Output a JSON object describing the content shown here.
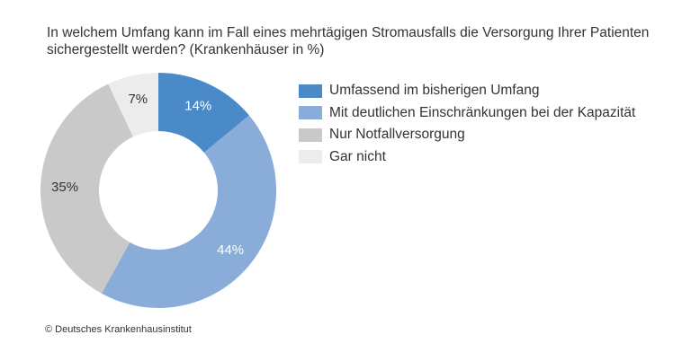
{
  "title": "In welchem Umfang kann im Fall eines mehrtägigen Stromausfalls die Versorgung Ihrer Patienten sichergestellt werden? (Krankenhäuser in %)",
  "source": "© Deutsches Krankenhausinstitut",
  "chart_data": {
    "type": "pie",
    "title": "In welchem Umfang kann im Fall eines mehrtägigen Stromausfalls die Versorgung Ihrer Patienten sichergestellt werden? (Krankenhäuser in %)",
    "donut": true,
    "legend_position": "right",
    "unit": "%",
    "slices": [
      {
        "label": "Umfassend im bisherigen Umfang",
        "value": 14,
        "display": "14%",
        "color": "#4a8ac9",
        "label_color": "#ffffff"
      },
      {
        "label": "Mit deutlichen Einschränkungen bei der Kapazität",
        "value": 44,
        "display": "44%",
        "color": "#8aacd9",
        "label_color": "#ffffff"
      },
      {
        "label": "Nur Notfallversorgung",
        "value": 35,
        "display": "35%",
        "color": "#c9c9c9",
        "label_color": "#333333"
      },
      {
        "label": "Gar nicht",
        "value": 7,
        "display": "7%",
        "color": "#ececec",
        "label_color": "#333333"
      }
    ]
  }
}
